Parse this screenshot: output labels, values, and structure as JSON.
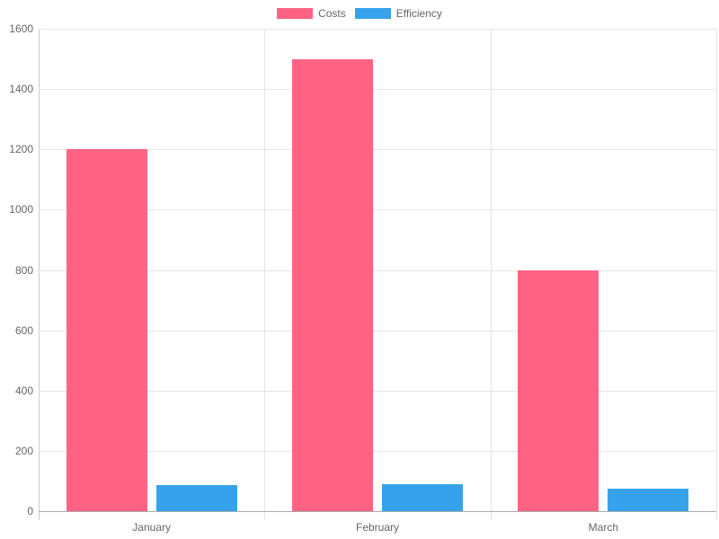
{
  "chart_data": {
    "type": "bar",
    "title": "",
    "xlabel": "",
    "ylabel": "",
    "categories": [
      "January",
      "February",
      "March"
    ],
    "series": [
      {
        "name": "Costs",
        "color": "#ff6384",
        "values": [
          1200,
          1500,
          800
        ]
      },
      {
        "name": "Efficiency",
        "color": "#36a2eb",
        "values": [
          85,
          90,
          75
        ]
      }
    ],
    "ylim": [
      0,
      1600
    ],
    "yticks": [
      "0",
      "200",
      "400",
      "600",
      "800",
      "1000",
      "1200",
      "1400",
      "1600"
    ],
    "grid": true,
    "legend_position": "top"
  }
}
